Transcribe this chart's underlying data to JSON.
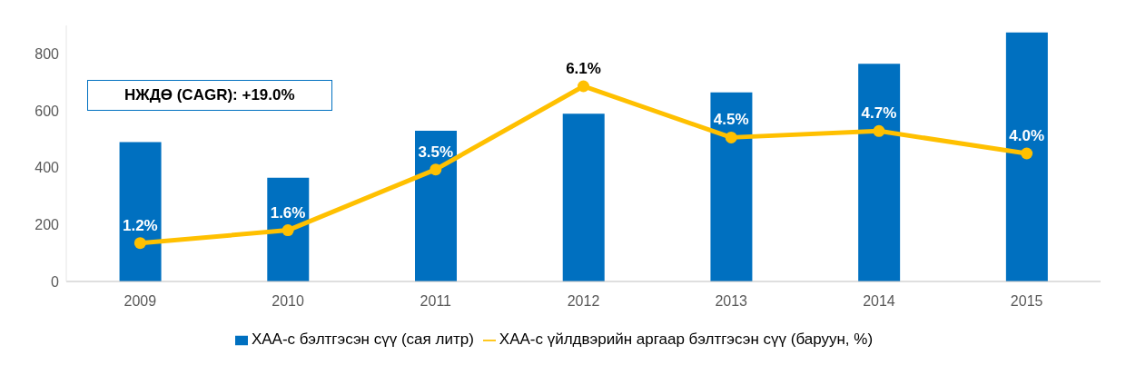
{
  "chart_data": {
    "type": "bar",
    "categories": [
      "2009",
      "2010",
      "2011",
      "2012",
      "2013",
      "2014",
      "2015"
    ],
    "series": [
      {
        "name": "ХАА-с бэлтгэсэн сүү (сая литр)",
        "color": "#0070c0",
        "values": [
          490,
          365,
          530,
          590,
          665,
          765,
          875
        ]
      },
      {
        "name": "ХАА-с үйлдвэрийн аргаар бэлтгэсэн сүү (баруун, %)",
        "type": "line",
        "axis": "y2",
        "color": "#ffc000",
        "values": [
          1.2,
          1.6,
          3.5,
          6.1,
          4.5,
          4.7,
          4.0
        ],
        "value_labels": [
          "1.2%",
          "1.6%",
          "3.5%",
          "6.1%",
          "4.5%",
          "4.7%",
          "4.0%"
        ]
      }
    ],
    "ylim": [
      0,
      900
    ],
    "yticks": [
      0,
      200,
      400,
      600,
      800
    ],
    "annotations": [
      "НЖДӨ (CAGR): +19.0%"
    ],
    "grid": false,
    "legend": "bottom",
    "marker": "circle",
    "line_style": "solid"
  }
}
